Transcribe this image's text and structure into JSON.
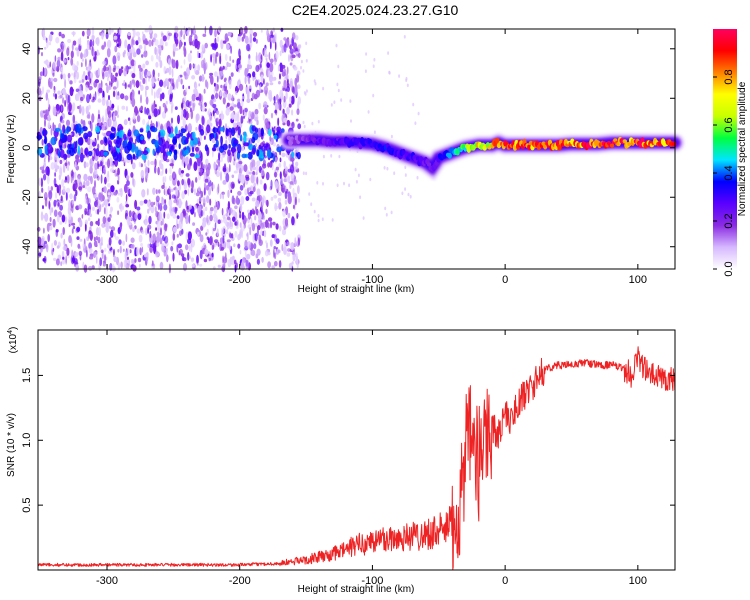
{
  "figure": {
    "title": "C2E4.2025.024.23.27.G10"
  },
  "chart_data": [
    {
      "type": "heatmap",
      "xlabel": "Height of straight line (km)",
      "ylabel": "Frequency (Hz)",
      "xlim": [
        -352,
        128
      ],
      "ylim": [
        -49,
        48
      ],
      "xticks": [
        -300,
        -200,
        -100,
        0,
        100
      ],
      "yticks": [
        -40,
        -20,
        0,
        20,
        40
      ],
      "xtick_labels": [
        "-300",
        "-200",
        "-100",
        "0",
        "100"
      ],
      "ytick_labels": [
        "-40",
        "-20",
        "0",
        "20",
        "40"
      ],
      "colorbar": {
        "label": "Normalized spectral amplitude",
        "range": [
          0,
          1
        ],
        "ticks": [
          0.0,
          0.2,
          0.4,
          0.6,
          0.8
        ],
        "tick_labels": [
          "0.0",
          "0.2",
          "0.4",
          "0.6",
          "0.8"
        ],
        "colors": [
          "#ffffff",
          "#d6b8ff",
          "#8a2be2",
          "#5a00ff",
          "#0000ff",
          "#00e5ff",
          "#00ff40",
          "#c8ff00",
          "#ffff00",
          "#ff8000",
          "#ff0000",
          "#ff0060"
        ]
      },
      "noise_region_x": [
        -352,
        -155
      ],
      "signal_track": {
        "x": [
          -163,
          -150,
          -140,
          -130,
          -120,
          -110,
          -100,
          -90,
          -80,
          -70,
          -60,
          -55,
          -50,
          -45,
          -40,
          -30,
          -20,
          -10,
          -5,
          0,
          10,
          20,
          30,
          40,
          50,
          60,
          70,
          80,
          90,
          100,
          110,
          120,
          128
        ],
        "freq": [
          3,
          3,
          3,
          2.5,
          2.5,
          2,
          1.5,
          0,
          -2,
          -4,
          -6,
          -8,
          -4,
          -3,
          -2,
          0,
          1,
          1,
          2,
          1,
          1,
          1,
          1,
          1,
          1.5,
          1.5,
          1.5,
          2,
          2,
          2,
          2,
          2,
          2
        ],
        "intensity": [
          0.15,
          0.2,
          0.25,
          0.25,
          0.3,
          0.3,
          0.3,
          0.35,
          0.3,
          0.3,
          0.25,
          0.2,
          0.3,
          0.35,
          0.45,
          0.55,
          0.7,
          0.75,
          0.8,
          0.85,
          0.85,
          0.85,
          0.9,
          0.9,
          0.9,
          0.9,
          0.9,
          0.95,
          0.9,
          0.9,
          0.9,
          0.85,
          0.8
        ]
      }
    },
    {
      "type": "line",
      "xlabel": "Height of straight line (km)",
      "ylabel": "SNR (10 * v/v)",
      "y_multiplier_label": "(x10",
      "y_multiplier_exponent": "4",
      "y_multiplier_close": ")",
      "xlim": [
        -352,
        128
      ],
      "ylim": [
        0,
        1.85
      ],
      "xticks": [
        -300,
        -200,
        -100,
        0,
        100
      ],
      "yticks": [
        0.5,
        1.0,
        1.5
      ],
      "xtick_labels": [
        "-300",
        "-200",
        "-100",
        "0",
        "100"
      ],
      "ytick_labels": [
        "0.5",
        "1.0",
        "1.5"
      ],
      "line_color": "#ee2222",
      "series": [
        {
          "x": [
            -352,
            -300,
            -250,
            -200,
            -170,
            -150,
            -130,
            -110,
            -100,
            -90,
            -80,
            -70,
            -60,
            -50,
            -45,
            -40,
            -35,
            -30,
            -25,
            -20,
            -15,
            -10,
            -5,
            0,
            5,
            10,
            15,
            20,
            25,
            30,
            40,
            50,
            60,
            70,
            80,
            90,
            95,
            100,
            105,
            110,
            120,
            128
          ],
          "values": [
            0.04,
            0.04,
            0.04,
            0.04,
            0.05,
            0.08,
            0.12,
            0.2,
            0.22,
            0.24,
            0.25,
            0.26,
            0.28,
            0.3,
            0.32,
            0.35,
            0.45,
            0.9,
            1.0,
            0.8,
            1.1,
            1.1,
            1.05,
            1.2,
            1.15,
            1.3,
            1.35,
            1.42,
            1.48,
            1.55,
            1.58,
            1.58,
            1.6,
            1.58,
            1.58,
            1.55,
            1.5,
            1.65,
            1.55,
            1.5,
            1.48,
            1.47
          ]
        }
      ]
    }
  ]
}
